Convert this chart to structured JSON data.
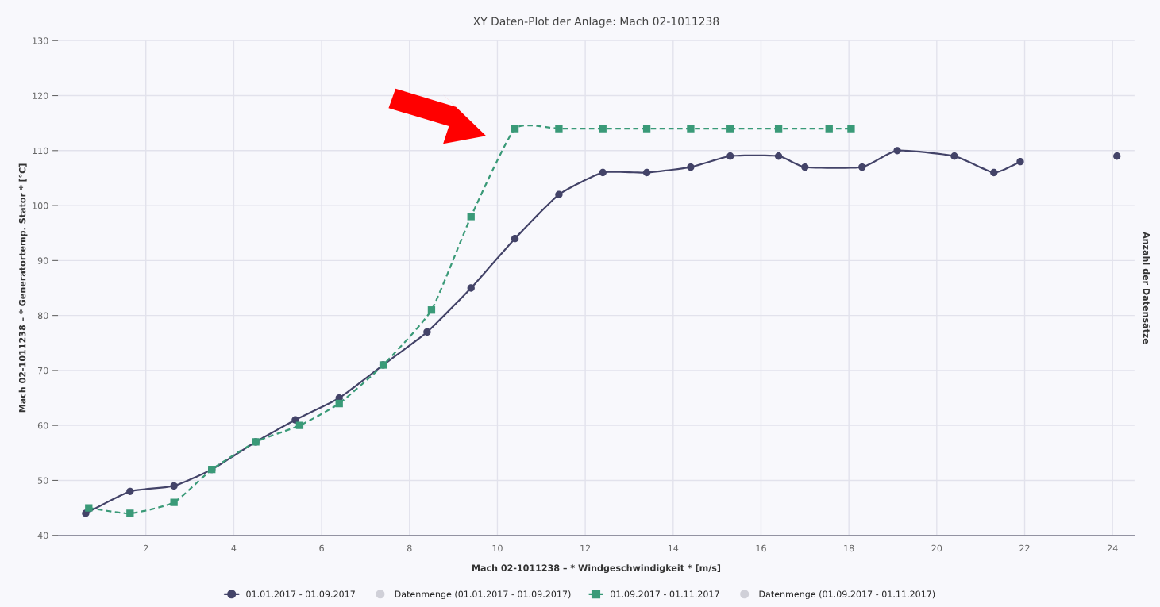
{
  "chart_data": {
    "type": "line",
    "title": "XY Daten-Plot der Anlage: Mach 02-1011238",
    "xlabel": "Mach 02-1011238 – * Windgeschwindigkeit * [m/s]",
    "ylabel": "Mach 02-1011238 – * Generatortemp. Stator * [°C]",
    "y2label": "Anzahl der Datensätze",
    "xlim": [
      0,
      24.5
    ],
    "xticks": [
      2,
      4,
      6,
      8,
      10,
      12,
      14,
      16,
      18,
      20,
      22,
      24
    ],
    "ylim": [
      40,
      130
    ],
    "yticks": [
      40,
      50,
      60,
      70,
      80,
      90,
      100,
      110,
      120,
      130
    ],
    "grid": true,
    "legend": "bottom",
    "series": [
      {
        "name": "01.01.2017 - 01.09.2017",
        "color": "#434368",
        "marker": "circle",
        "line_style": "solid",
        "x": [
          0.63,
          1.64,
          2.64,
          3.5,
          4.5,
          5.4,
          6.4,
          7.4,
          8.4,
          9.4,
          10.4,
          11.4,
          12.4,
          13.4,
          14.4,
          15.3,
          16.4,
          17.0,
          18.3,
          19.1,
          20.4,
          21.3,
          21.9,
          23.0,
          24.1
        ],
        "values": [
          44,
          48,
          49,
          52,
          57,
          61,
          65,
          71,
          77,
          85,
          94,
          102,
          106,
          106,
          107,
          109,
          109,
          107,
          107,
          110,
          109,
          106,
          108,
          null,
          109
        ]
      },
      {
        "name": "Datenmenge (01.01.2017 - 01.09.2017)",
        "type": "scatter",
        "color": "#d0d0d8",
        "marker": "circle"
      },
      {
        "name": "01.09.2017 - 01.11.2017",
        "color": "#3a9a78",
        "marker": "square",
        "line_style": "dashed",
        "x": [
          0.7,
          1.64,
          2.64,
          3.5,
          4.5,
          5.5,
          6.4,
          7.4,
          8.5,
          9.4,
          10.4,
          11.4,
          12.4,
          13.4,
          14.4,
          15.3,
          16.4,
          17.55,
          18.05
        ],
        "values": [
          45,
          44,
          46,
          52,
          57,
          60,
          64,
          71,
          81,
          98,
          114,
          114,
          114,
          114,
          114,
          114,
          114,
          114,
          114
        ]
      },
      {
        "name": "Datenmenge (01.09.2017 - 01.11.2017)",
        "type": "scatter",
        "color": "#d0d0d8",
        "marker": "circle"
      }
    ]
  }
}
